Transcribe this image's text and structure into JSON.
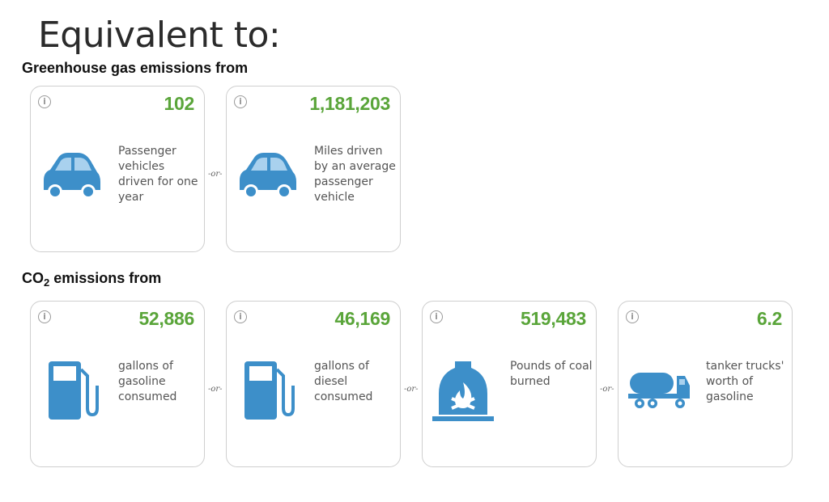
{
  "title": "Equivalent to:",
  "sections": [
    {
      "heading": "Greenhouse gas emissions from",
      "cards": [
        {
          "value": "102",
          "description": "Passenger vehicles driven for one year",
          "icon": "car-icon"
        },
        {
          "value": "1,181,203",
          "description": "Miles driven by an average passenger vehicle",
          "icon": "car-icon"
        }
      ]
    },
    {
      "heading_prefix": "CO",
      "heading_sub": "2",
      "heading_suffix": " emissions from",
      "cards": [
        {
          "value": "52,886",
          "description": "gallons of gasoline consumed",
          "icon": "fuel-pump-icon"
        },
        {
          "value": "46,169",
          "description": "gallons of diesel consumed",
          "icon": "fuel-pump-icon"
        },
        {
          "value": "519,483",
          "description": "Pounds of coal burned",
          "icon": "coal-furnace-icon"
        },
        {
          "value": "6.2",
          "description": "tanker trucks' worth of gasoline",
          "icon": "tanker-truck-icon"
        }
      ]
    }
  ],
  "info_symbol": "i",
  "or_text": "-or-",
  "colors": {
    "value_green": "#5aa53a",
    "icon_blue": "#3d8fc9",
    "border": "#cfcfcf"
  }
}
